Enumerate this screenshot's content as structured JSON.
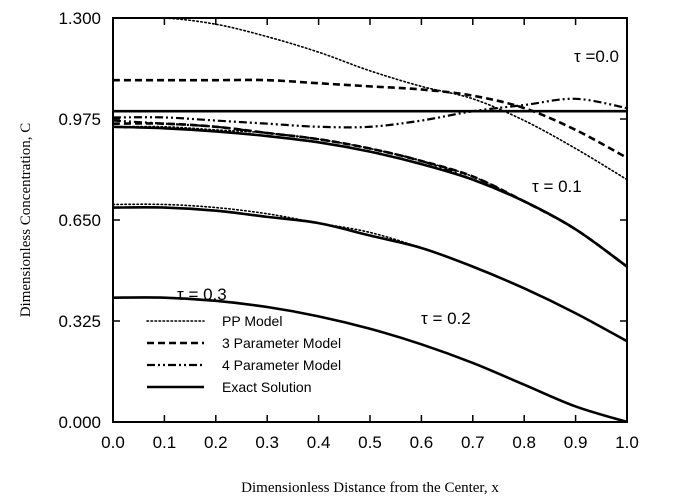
{
  "chart_data": {
    "type": "line",
    "xlabel": "Dimensionless Distance from the Center, x",
    "ylabel": "Dimensionless Concentration, C",
    "xlim": [
      0.0,
      1.0
    ],
    "ylim": [
      0.0,
      1.3
    ],
    "x_ticks": [
      "0.0",
      "0.1",
      "0.2",
      "0.3",
      "0.4",
      "0.5",
      "0.6",
      "0.7",
      "0.8",
      "0.9",
      "1.0"
    ],
    "y_ticks": [
      "0.000",
      "0.325",
      "0.650",
      "0.975",
      "1.300"
    ],
    "grid": false,
    "legend_position": "bottom-left",
    "legend": [
      "PP Model",
      "3 Parameter Model",
      "4 Parameter Model",
      "Exact Solution"
    ],
    "x": [
      0.0,
      0.1,
      0.2,
      0.3,
      0.4,
      0.5,
      0.6,
      0.7,
      0.8,
      0.9,
      1.0
    ],
    "series": [
      {
        "name": "PP Model",
        "style": "dotted",
        "tau": "0.0",
        "values": [
          1.3,
          1.3,
          1.28,
          1.24,
          1.19,
          1.13,
          1.08,
          1.04,
          0.97,
          0.88,
          0.78
        ]
      },
      {
        "name": "3 Parameter Model",
        "style": "dashed",
        "tau": "0.0",
        "values": [
          1.1,
          1.1,
          1.1,
          1.1,
          1.09,
          1.08,
          1.07,
          1.05,
          1.01,
          0.94,
          0.85
        ]
      },
      {
        "name": "4 Parameter Model",
        "style": "dashdot",
        "tau": "0.0",
        "values": [
          0.98,
          0.98,
          0.97,
          0.96,
          0.95,
          0.95,
          0.97,
          1.0,
          1.02,
          1.04,
          1.01
        ]
      },
      {
        "name": "Exact Solution",
        "style": "solid",
        "tau": "0.0",
        "values": [
          1.0,
          1.0,
          1.0,
          1.0,
          1.0,
          1.0,
          1.0,
          1.0,
          1.0,
          1.0,
          1.0
        ]
      },
      {
        "name": "PP Model",
        "style": "dotted",
        "tau": "0.1",
        "values": [
          0.95,
          0.95,
          0.94,
          0.93,
          0.91,
          0.88,
          0.84,
          0.79,
          0.71,
          0.62,
          0.5
        ]
      },
      {
        "name": "3 Parameter Model",
        "style": "dashed",
        "tau": "0.1",
        "values": [
          0.96,
          0.96,
          0.95,
          0.93,
          0.91,
          0.88,
          0.84,
          0.79,
          0.71,
          0.62,
          0.5
        ]
      },
      {
        "name": "4 Parameter Model",
        "style": "dashdot",
        "tau": "0.1",
        "values": [
          0.97,
          0.96,
          0.95,
          0.93,
          0.91,
          0.88,
          0.84,
          0.78,
          0.71,
          0.62,
          0.5
        ]
      },
      {
        "name": "Exact Solution",
        "style": "solid",
        "tau": "0.1",
        "values": [
          0.95,
          0.945,
          0.935,
          0.92,
          0.9,
          0.87,
          0.83,
          0.78,
          0.71,
          0.62,
          0.5
        ]
      },
      {
        "name": "PP Model",
        "style": "dotted",
        "tau": "0.2",
        "values": [
          0.7,
          0.7,
          0.69,
          0.67,
          0.64,
          0.61,
          0.56,
          0.5,
          0.43,
          0.35,
          0.26
        ]
      },
      {
        "name": "Exact Solution",
        "style": "solid",
        "tau": "0.2",
        "values": [
          0.69,
          0.69,
          0.68,
          0.66,
          0.64,
          0.6,
          0.56,
          0.5,
          0.43,
          0.35,
          0.26
        ]
      },
      {
        "name": "Exact Solution",
        "style": "solid",
        "tau": "0.3",
        "values": [
          0.4,
          0.4,
          0.39,
          0.37,
          0.34,
          0.3,
          0.25,
          0.19,
          0.12,
          0.05,
          0.0
        ]
      }
    ],
    "annotations": [
      "τ =0.0",
      "τ = 0.1",
      "τ = 0.2",
      "τ = 0.3"
    ]
  }
}
